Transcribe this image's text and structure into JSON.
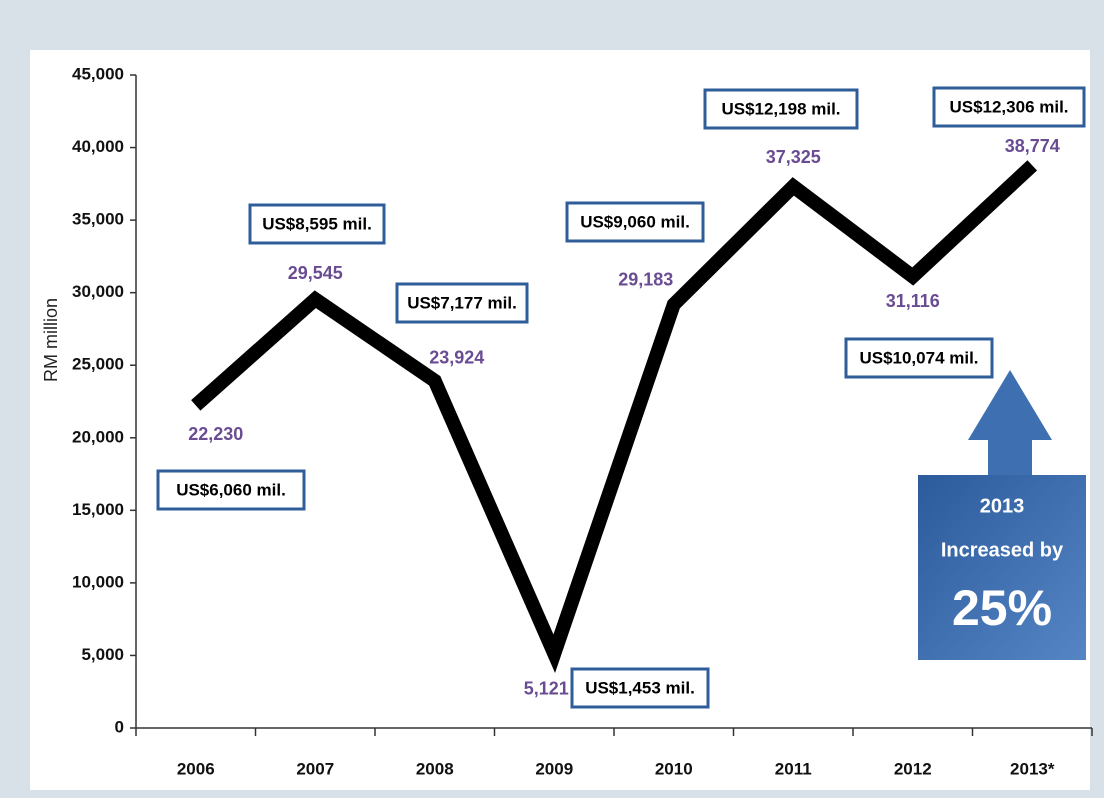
{
  "chart_data": {
    "type": "line",
    "y_axis_label": "RM million",
    "categories": [
      "2006",
      "2007",
      "2008",
      "2009",
      "2010",
      "2011",
      "2012",
      "2013*"
    ],
    "series": [
      {
        "color": "#000000",
        "values": [
          22230,
          29545,
          23924,
          5121,
          29183,
          37325,
          31116,
          38774
        ],
        "value_labels": [
          "22,230",
          "29,545",
          "23,924",
          "5,121",
          "29,183",
          "37,325",
          "31,116",
          "38,774"
        ]
      }
    ],
    "annotations": [
      "US$6,060 mil.",
      "US$8,595 mil.",
      "US$7,177 mil.",
      "US$1,453 mil.",
      "US$9,060 mil.",
      "US$12,198 mil.",
      "US$10,074 mil.",
      "US$12,306 mil."
    ],
    "callout": [
      "2013",
      "Increased by",
      "25%"
    ],
    "ylim": [
      0,
      45000
    ],
    "yticks": [
      0,
      {
        "value": 5000,
        "label": "5,000"
      },
      {
        "value": 10000,
        "label": "10,000"
      },
      {
        "value": 15000,
        "label": "15,000"
      },
      {
        "value": 20000,
        "label": "20,000"
      },
      {
        "value": 25000,
        "label": "25,000"
      },
      {
        "value": 30000,
        "label": "30,000"
      },
      {
        "value": 35000,
        "label": "35,000"
      },
      {
        "value": 40000,
        "label": "40,000"
      },
      {
        "value": 45000,
        "label": "45,000"
      }
    ],
    "grid": false
  }
}
